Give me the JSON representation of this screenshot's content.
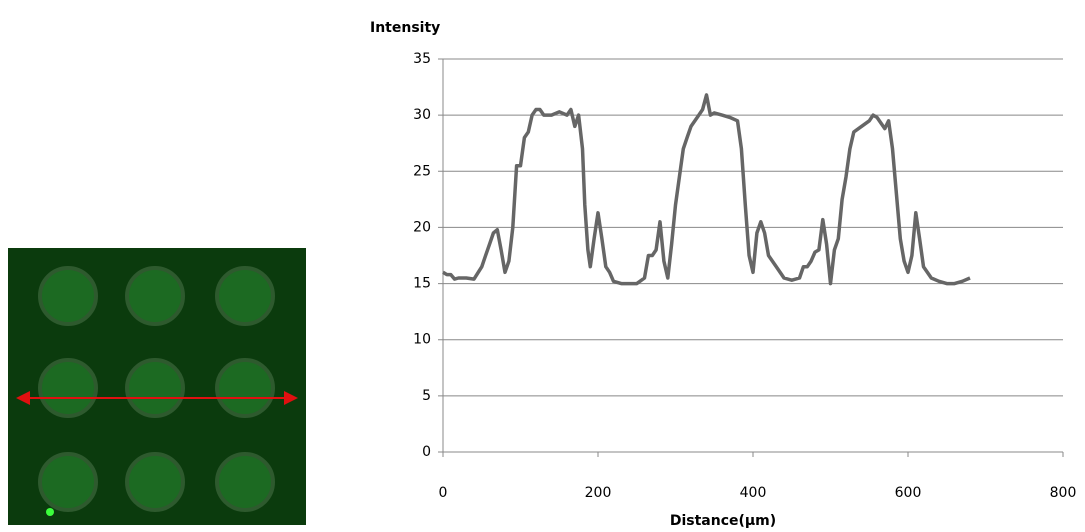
{
  "chart_data": {
    "type": "line",
    "title": "Intensity",
    "x_label": "Distance(µm)",
    "x": [
      0,
      5,
      10,
      15,
      20,
      30,
      40,
      50,
      55,
      60,
      65,
      70,
      75,
      80,
      85,
      90,
      95,
      100,
      105,
      110,
      115,
      120,
      125,
      130,
      140,
      150,
      160,
      165,
      170,
      175,
      180,
      183,
      187,
      190,
      195,
      200,
      205,
      210,
      215,
      220,
      230,
      240,
      250,
      260,
      265,
      270,
      275,
      280,
      285,
      290,
      295,
      300,
      305,
      310,
      315,
      320,
      330,
      335,
      340,
      345,
      350,
      360,
      370,
      380,
      385,
      390,
      395,
      400,
      405,
      410,
      415,
      420,
      430,
      440,
      450,
      460,
      465,
      470,
      475,
      480,
      485,
      490,
      495,
      500,
      505,
      510,
      515,
      520,
      525,
      530,
      540,
      550,
      555,
      560,
      565,
      570,
      575,
      580,
      585,
      590,
      595,
      600,
      605,
      610,
      615,
      620,
      630,
      640,
      650,
      660,
      670,
      680
    ],
    "series": [
      {
        "name": "Intensity",
        "color": "#666666",
        "values": [
          16,
          15.8,
          15.8,
          15.4,
          15.5,
          15.5,
          15.4,
          16.5,
          17.5,
          18.5,
          19.5,
          19.8,
          18,
          16,
          17,
          20,
          25.5,
          25.5,
          28,
          28.5,
          30,
          30.5,
          30.5,
          30,
          30,
          30.3,
          30,
          30.5,
          29,
          30,
          27,
          22,
          18,
          16.5,
          19,
          21.3,
          19,
          16.5,
          16,
          15.2,
          15,
          15,
          15,
          15.5,
          17.5,
          17.5,
          18,
          20.5,
          17,
          15.5,
          18.5,
          22,
          24.5,
          27,
          28,
          29,
          30,
          30.5,
          31.8,
          30,
          30.2,
          30,
          29.8,
          29.5,
          27,
          22,
          17.5,
          16,
          19.5,
          20.5,
          19.5,
          17.5,
          16.5,
          15.5,
          15.3,
          15.5,
          16.5,
          16.5,
          17,
          17.8,
          18,
          20.7,
          18.5,
          15,
          18,
          19,
          22.5,
          24.5,
          27,
          28.5,
          29,
          29.5,
          30,
          29.8,
          29.3,
          28.8,
          29.5,
          27,
          23,
          19,
          17,
          16,
          17.5,
          21.3,
          19,
          16.5,
          15.5,
          15.2,
          15,
          15,
          15.2,
          15.5
        ]
      }
    ],
    "xlim": [
      0,
      800
    ],
    "xticks": [
      0,
      200,
      400,
      600,
      800
    ],
    "ylim": [
      0,
      35
    ],
    "yticks": [
      0,
      5,
      10,
      15,
      20,
      25,
      30,
      35
    ],
    "grid": true
  }
}
